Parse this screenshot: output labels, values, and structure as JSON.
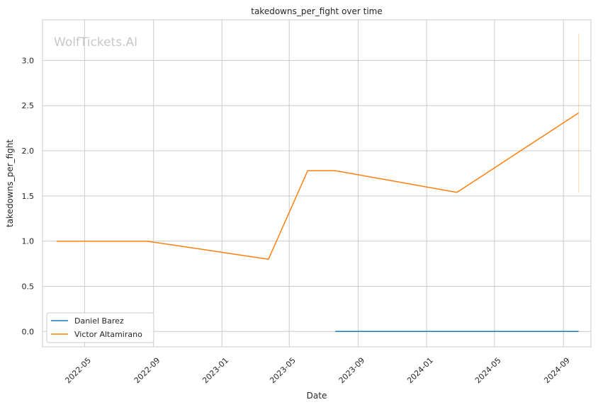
{
  "watermark": "WolfTickets.AI",
  "chart_data": {
    "type": "line",
    "title": "takedowns_per_fight over time",
    "xlabel": "Date",
    "ylabel": "takedowns_per_fight",
    "xlim": [
      "2022-02-15",
      "2024-10-20"
    ],
    "ylim": [
      -0.17,
      3.45
    ],
    "x_ticks": [
      "2022-05-01",
      "2022-09-01",
      "2023-01-01",
      "2023-05-01",
      "2023-09-01",
      "2024-01-01",
      "2024-05-01",
      "2024-09-01"
    ],
    "x_tick_labels": [
      "2022-05",
      "2022-09",
      "2023-01",
      "2023-05",
      "2023-09",
      "2024-01",
      "2024-05",
      "2024-09"
    ],
    "y_ticks": [
      0.0,
      0.5,
      1.0,
      1.5,
      2.0,
      2.5,
      3.0
    ],
    "y_tick_labels": [
      "0.0",
      "0.5",
      "1.0",
      "1.5",
      "2.0",
      "2.5",
      "3.0"
    ],
    "grid": true,
    "legend_position": "lower-left",
    "series": [
      {
        "name": "Daniel Barez",
        "color": "#1f77b4",
        "points": [
          {
            "x": "2023-07-22",
            "y": 0.0
          },
          {
            "x": "2024-09-28",
            "y": 0.0
          }
        ]
      },
      {
        "name": "Victor Altamirano",
        "color": "#ff7f0e",
        "points": [
          {
            "x": "2022-03-12",
            "y": 1.0
          },
          {
            "x": "2022-08-20",
            "y": 1.0
          },
          {
            "x": "2023-03-25",
            "y": 0.8
          },
          {
            "x": "2023-06-03",
            "y": 1.78
          },
          {
            "x": "2023-07-22",
            "y": 1.78
          },
          {
            "x": "2024-02-24",
            "y": 1.54
          },
          {
            "x": "2024-09-28",
            "y": 2.42
          }
        ]
      }
    ],
    "error_bars": [
      {
        "x": "2024-09-28",
        "low": 1.54,
        "high": 3.3,
        "color": "#ff7f0e"
      }
    ]
  }
}
